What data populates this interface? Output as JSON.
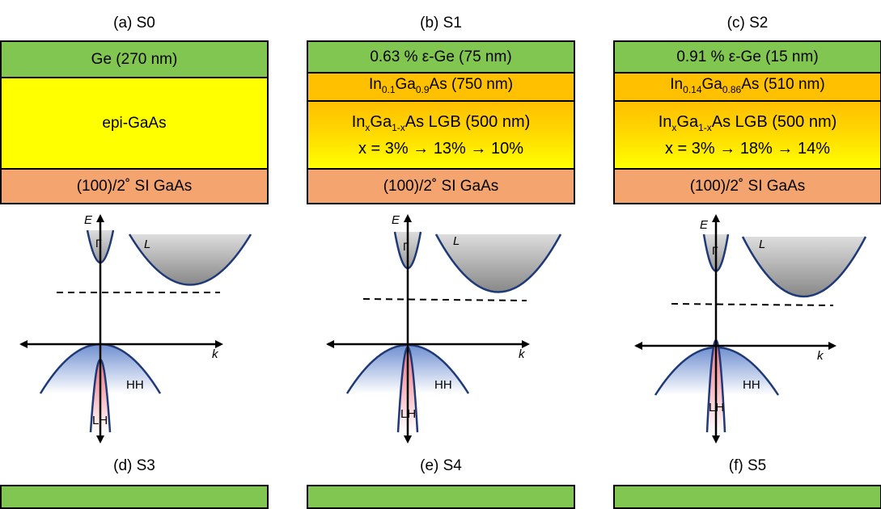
{
  "panels": [
    {
      "title": "(a) S0",
      "layers": {
        "top": "Ge (270 nm)",
        "middle": "epi-GaAs",
        "substrate": "(100)/2˚ SI GaAs"
      },
      "band_labels": {
        "E": "E",
        "k": "k",
        "gamma": "Γ",
        "L": "L",
        "HH": "HH",
        "LH": "LH"
      }
    },
    {
      "title": "(b) S1",
      "layers": {
        "top": "0.63 % ε-Ge (75 nm)",
        "buffer": {
          "in_sub": "0.1",
          "ga_sub": "0.9",
          "thickness": "As (750 nm)"
        },
        "lgb_line1": "LGB (500 nm)",
        "lgb_line2": "x = 3% → 13% → 10%",
        "substrate": "(100)/2˚ SI GaAs"
      },
      "band_labels": {
        "E": "E",
        "k": "k",
        "gamma": "Γ",
        "L": "L",
        "HH": "HH",
        "LH": "LH"
      }
    },
    {
      "title": "(c) S2",
      "layers": {
        "top": "0.91 % ε-Ge (15 nm)",
        "buffer": {
          "in_sub": "0.14",
          "ga_sub": "0.86",
          "thickness": "As (510 nm)"
        },
        "lgb_line1": "LGB (500 nm)",
        "lgb_line2": "x = 3% → 18% → 14%",
        "substrate": "(100)/2˚ SI GaAs"
      },
      "band_labels": {
        "E": "E",
        "k": "k",
        "gamma": "Γ",
        "L": "L",
        "HH": "HH",
        "LH": "LH"
      }
    }
  ],
  "bottom_titles": [
    "(d) S3",
    "(e) S4",
    "(f) S5"
  ],
  "colors": {
    "ge": "#82c652",
    "ingaas": "#ffc000",
    "epi": "#ffff00",
    "substrate": "#f4a46f",
    "hh_band": "#6f8fd0",
    "lh_band": "#f07080",
    "conduction": "#888888"
  }
}
